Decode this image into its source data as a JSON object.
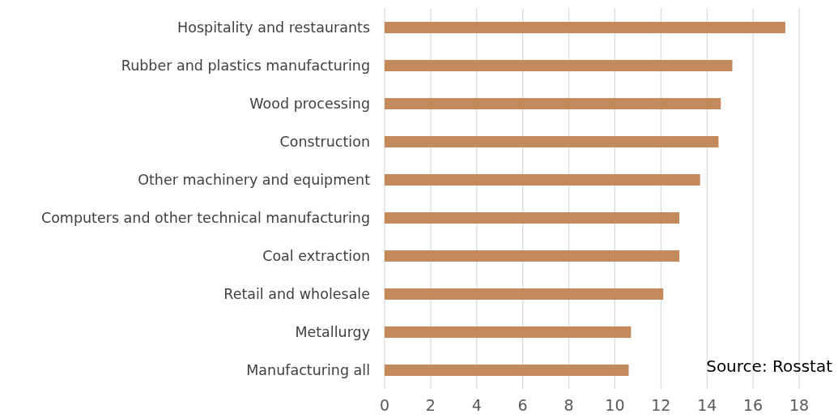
{
  "chart_data": {
    "type": "bar",
    "orientation": "horizontal",
    "categories": [
      "Hospitality and restaurants",
      "Rubber and plastics manufacturing",
      "Wood processing",
      "Construction",
      "Other machinery and equipment",
      "Computers and other technical manufacturing",
      "Coal extraction",
      "Retail and wholesale",
      "Metallurgy",
      "Manufacturing all"
    ],
    "values": [
      17.4,
      15.1,
      14.6,
      14.5,
      13.7,
      12.8,
      12.8,
      12.1,
      10.7,
      10.6
    ],
    "color": "#c48a5c",
    "xlim": [
      0,
      18
    ],
    "xticks": [
      0,
      2,
      4,
      6,
      8,
      10,
      12,
      14,
      16,
      18
    ],
    "grid": "x",
    "annotations": [
      "Source: Rosstat"
    ]
  }
}
